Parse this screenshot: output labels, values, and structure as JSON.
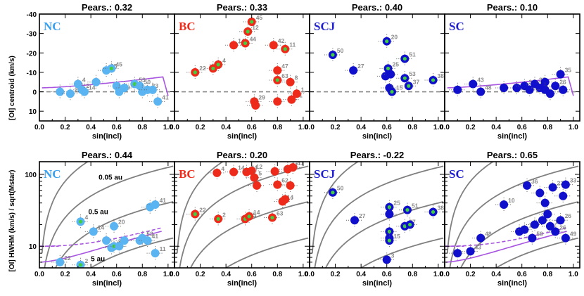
{
  "chart_data": [
    {
      "type": "scatter",
      "id": "nc-top",
      "row": "centroid",
      "title": "Pears.: 0.32",
      "tag": "NC",
      "tag_color": "#3aa0ee",
      "point_fill": "#5ab4f2",
      "xlabel": "sin(incl)",
      "ylabel": "[OI] centroid (km/s)",
      "xlim": [
        0,
        1.05
      ],
      "ylim": [
        -40,
        15
      ],
      "xticks": [
        "0.0",
        "0.2",
        "0.4",
        "0.6",
        "0.8",
        "1.0"
      ],
      "yticks": [
        -40,
        -30,
        -20,
        -10,
        0,
        10
      ],
      "curve": "purple-solid",
      "points": [
        {
          "x": 0.16,
          "y": 0,
          "id": ""
        },
        {
          "x": 0.24,
          "y": 1,
          "id": "22"
        },
        {
          "x": 0.3,
          "y": -4,
          "id": "4"
        },
        {
          "x": 0.33,
          "y": -1,
          "id": "2"
        },
        {
          "x": 0.35,
          "y": 0,
          "id": "14"
        },
        {
          "x": 0.44,
          "y": -5,
          "id": ""
        },
        {
          "x": 0.52,
          "y": -11,
          "id": "25"
        },
        {
          "x": 0.56,
          "y": -12,
          "id": "45",
          "green": true
        },
        {
          "x": 0.6,
          "y": -3,
          "id": ""
        },
        {
          "x": 0.62,
          "y": 0,
          "id": "19"
        },
        {
          "x": 0.66,
          "y": -2,
          "id": ""
        },
        {
          "x": 0.74,
          "y": -4,
          "id": "53",
          "green": true
        },
        {
          "x": 0.78,
          "y": -3,
          "id": "50"
        },
        {
          "x": 0.8,
          "y": 0,
          "id": ""
        },
        {
          "x": 0.84,
          "y": -1,
          "id": "23"
        },
        {
          "x": 0.88,
          "y": -1,
          "id": ""
        },
        {
          "x": 0.92,
          "y": 5,
          "id": "41"
        }
      ]
    },
    {
      "type": "scatter",
      "id": "bc-top",
      "row": "centroid",
      "title": "Pears.: 0.33",
      "tag": "BC",
      "tag_color": "#ee2a1a",
      "point_fill": "#ee2a1a",
      "xlabel": "sin(incl)",
      "ylabel": "",
      "xlim": [
        0,
        1.05
      ],
      "ylim": [
        -40,
        15
      ],
      "xticks": [
        "0.0",
        "0.2",
        "0.4",
        "0.6",
        "0.8",
        "1.0"
      ],
      "yticks": [],
      "curve": "",
      "points": [
        {
          "x": 0.16,
          "y": -10,
          "id": "22",
          "green": true
        },
        {
          "x": 0.3,
          "y": -12,
          "id": "2",
          "green": true
        },
        {
          "x": 0.34,
          "y": -14,
          "id": "4",
          "green": true
        },
        {
          "x": 0.46,
          "y": -24,
          "id": "14"
        },
        {
          "x": 0.55,
          "y": -25,
          "id": "44",
          "green": true
        },
        {
          "x": 0.57,
          "y": -31,
          "id": "12",
          "green": true
        },
        {
          "x": 0.6,
          "y": -36,
          "id": "45",
          "green": true
        },
        {
          "x": 0.62,
          "y": 5,
          "id": "29"
        },
        {
          "x": 0.63,
          "y": 7,
          "id": ""
        },
        {
          "x": 0.77,
          "y": -24,
          "id": "42"
        },
        {
          "x": 0.8,
          "y": -11,
          "id": "47"
        },
        {
          "x": 0.8,
          "y": -6,
          "id": "63",
          "green": true
        },
        {
          "x": 0.86,
          "y": -22,
          "id": "11",
          "green": true
        },
        {
          "x": 0.9,
          "y": -5,
          "id": "8"
        },
        {
          "x": 0.8,
          "y": 5,
          "id": ""
        },
        {
          "x": 0.91,
          "y": 4,
          "id": "41"
        },
        {
          "x": 0.95,
          "y": 1,
          "id": "1"
        }
      ]
    },
    {
      "type": "scatter",
      "id": "scj-top",
      "row": "centroid",
      "title": "Pears.: 0.40",
      "tag": "SCJ",
      "tag_color": "#2020d0",
      "point_fill": "#1010cc",
      "xlabel": "sin(incl)",
      "ylabel": "",
      "xlim": [
        0,
        1.05
      ],
      "ylim": [
        -40,
        15
      ],
      "xticks": [
        "0.0",
        "0.2",
        "0.4",
        "0.6",
        "0.8",
        "1.0"
      ],
      "yticks": [],
      "curve": "",
      "points": [
        {
          "x": 0.18,
          "y": -19,
          "id": "50",
          "green": true
        },
        {
          "x": 0.34,
          "y": -11,
          "id": "27"
        },
        {
          "x": 0.6,
          "y": -26,
          "id": "20",
          "green": true
        },
        {
          "x": 0.59,
          "y": -8,
          "id": ""
        },
        {
          "x": 0.61,
          "y": -12,
          "id": "25",
          "green": true
        },
        {
          "x": 0.63,
          "y": -9,
          "id": ""
        },
        {
          "x": 0.62,
          "y": -2,
          "id": ""
        },
        {
          "x": 0.64,
          "y": 0,
          "id": "15",
          "green": true
        },
        {
          "x": 0.74,
          "y": -17,
          "id": "51",
          "green": true
        },
        {
          "x": 0.74,
          "y": -7,
          "id": "53",
          "green": true
        },
        {
          "x": 0.77,
          "y": -3,
          "id": "37",
          "green": true
        },
        {
          "x": 0.96,
          "y": -6,
          "id": "38",
          "green": true
        }
      ]
    },
    {
      "type": "scatter",
      "id": "sc-top",
      "row": "centroid",
      "title": "Pears.: 0.10",
      "tag": "SC",
      "tag_color": "#2020d0",
      "point_fill": "#1010cc",
      "xlabel": "sin(incl)",
      "ylabel": "",
      "xlim": [
        0,
        1.05
      ],
      "ylim": [
        -40,
        15
      ],
      "xticks": [
        "0.0",
        "0.2",
        "0.4",
        "0.6",
        "0.8",
        "1.0"
      ],
      "yticks": [],
      "curve": "purple-solid",
      "points": [
        {
          "x": 0.1,
          "y": -1,
          "id": ""
        },
        {
          "x": 0.22,
          "y": -4,
          "id": "43"
        },
        {
          "x": 0.28,
          "y": 0,
          "id": "48"
        },
        {
          "x": 0.46,
          "y": -2,
          "id": ""
        },
        {
          "x": 0.56,
          "y": -2,
          "id": ""
        },
        {
          "x": 0.62,
          "y": -3,
          "id": "36"
        },
        {
          "x": 0.66,
          "y": -1,
          "id": ""
        },
        {
          "x": 0.7,
          "y": -4,
          "id": "35"
        },
        {
          "x": 0.74,
          "y": -2,
          "id": ""
        },
        {
          "x": 0.78,
          "y": -5,
          "id": ""
        },
        {
          "x": 0.78,
          "y": -1,
          "id": ""
        },
        {
          "x": 0.82,
          "y": 1,
          "id": ""
        },
        {
          "x": 0.86,
          "y": -3,
          "id": "26"
        },
        {
          "x": 0.9,
          "y": -9,
          "id": "35"
        },
        {
          "x": 0.92,
          "y": -1,
          "id": ""
        }
      ]
    },
    {
      "type": "scatter",
      "id": "nc-bot",
      "row": "hwhm",
      "title": "Pears.: 0.44",
      "tag": "NC",
      "tag_color": "#3aa0ee",
      "point_fill": "#5ab4f2",
      "xlabel": "sin(incl)",
      "ylabel": "[OI] HWHM (km/s) / sqrt(Mstar)",
      "xlim": [
        0,
        1.05
      ],
      "ylim": [
        5,
        150
      ],
      "log": true,
      "xticks": [
        "0.0",
        "0.2",
        "0.4",
        "0.6",
        "0.8",
        "1.0"
      ],
      "yticks": [
        10,
        100
      ],
      "curve": "purple-both",
      "annots": [
        "0.05 au",
        "0.5 au",
        "5 au"
      ],
      "points": [
        {
          "x": 0.16,
          "y": 6,
          "id": "22"
        },
        {
          "x": 0.32,
          "y": 22,
          "id": "4",
          "green": true
        },
        {
          "x": 0.32,
          "y": 5.5,
          "id": "2",
          "green": true
        },
        {
          "x": 0.42,
          "y": 16,
          "id": "14"
        },
        {
          "x": 0.52,
          "y": 12,
          "id": ""
        },
        {
          "x": 0.56,
          "y": 9.5,
          "id": "47"
        },
        {
          "x": 0.58,
          "y": 19,
          "id": "20"
        },
        {
          "x": 0.58,
          "y": 10,
          "id": "45",
          "green": true
        },
        {
          "x": 0.62,
          "y": 10,
          "id": ""
        },
        {
          "x": 0.66,
          "y": 12,
          "id": ""
        },
        {
          "x": 0.78,
          "y": 12,
          "id": ""
        },
        {
          "x": 0.8,
          "y": 13,
          "id": "53"
        },
        {
          "x": 0.84,
          "y": 12,
          "id": "41"
        },
        {
          "x": 0.86,
          "y": 35,
          "id": ""
        },
        {
          "x": 0.9,
          "y": 38,
          "id": "41"
        },
        {
          "x": 0.9,
          "y": 8,
          "id": "11"
        }
      ]
    },
    {
      "type": "scatter",
      "id": "bc-bot",
      "row": "hwhm",
      "title": "Pears.: 0.20",
      "tag": "BC",
      "tag_color": "#ee2a1a",
      "point_fill": "#ee2a1a",
      "xlabel": "sin(incl)",
      "ylabel": "",
      "xlim": [
        0,
        1.05
      ],
      "ylim": [
        5,
        150
      ],
      "log": true,
      "xticks": [
        "0.0",
        "0.2",
        "0.4",
        "0.6",
        "0.8",
        "1.0"
      ],
      "yticks": [],
      "curve": "",
      "points": [
        {
          "x": 0.16,
          "y": 28,
          "id": "22",
          "green": true
        },
        {
          "x": 0.33,
          "y": 105,
          "id": "4"
        },
        {
          "x": 0.34,
          "y": 24,
          "id": "2",
          "green": true
        },
        {
          "x": 0.46,
          "y": 108,
          "id": "14"
        },
        {
          "x": 0.55,
          "y": 24,
          "id": "45",
          "green": true
        },
        {
          "x": 0.56,
          "y": 108,
          "id": "44"
        },
        {
          "x": 0.58,
          "y": 26,
          "id": "14",
          "green": true
        },
        {
          "x": 0.6,
          "y": 112,
          "id": "12"
        },
        {
          "x": 0.62,
          "y": 90,
          "id": "5"
        },
        {
          "x": 0.64,
          "y": 70,
          "id": ""
        },
        {
          "x": 0.76,
          "y": 25,
          "id": "63",
          "green": true
        },
        {
          "x": 0.78,
          "y": 110,
          "id": ""
        },
        {
          "x": 0.8,
          "y": 72,
          "id": "62"
        },
        {
          "x": 0.84,
          "y": 42,
          "id": "14"
        },
        {
          "x": 0.86,
          "y": 45,
          "id": ""
        },
        {
          "x": 0.88,
          "y": 118,
          "id": "11"
        },
        {
          "x": 0.9,
          "y": 70,
          "id": ""
        },
        {
          "x": 0.92,
          "y": 125,
          "id": "41"
        }
      ]
    },
    {
      "type": "scatter",
      "id": "scj-bot",
      "row": "hwhm",
      "title": "Pears.: -0.22",
      "tag": "SCJ",
      "tag_color": "#2020d0",
      "point_fill": "#1010cc",
      "xlabel": "sin(incl)",
      "ylabel": "",
      "xlim": [
        0,
        1.05
      ],
      "ylim": [
        5,
        150
      ],
      "log": true,
      "xticks": [
        "0.0",
        "0.2",
        "0.4",
        "0.6",
        "0.8",
        "1.0"
      ],
      "yticks": [],
      "curve": "",
      "points": [
        {
          "x": 0.18,
          "y": 56,
          "id": "50",
          "green": true
        },
        {
          "x": 0.35,
          "y": 23,
          "id": "27"
        },
        {
          "x": 0.6,
          "y": 6.5,
          "id": "3"
        },
        {
          "x": 0.62,
          "y": 35,
          "id": "25",
          "green": true
        },
        {
          "x": 0.62,
          "y": 28,
          "id": ""
        },
        {
          "x": 0.62,
          "y": 16,
          "id": "",
          "green": true
        },
        {
          "x": 0.62,
          "y": 13,
          "id": "",
          "green": true
        },
        {
          "x": 0.62,
          "y": 12,
          "id": "15",
          "green": true
        },
        {
          "x": 0.74,
          "y": 19,
          "id": "37",
          "green": true
        },
        {
          "x": 0.76,
          "y": 32,
          "id": "51",
          "green": true
        },
        {
          "x": 0.78,
          "y": 20,
          "id": "",
          "green": true
        },
        {
          "x": 0.96,
          "y": 30,
          "id": "38",
          "green": true
        }
      ]
    },
    {
      "type": "scatter",
      "id": "sc-bot",
      "row": "hwhm",
      "title": "Pears.: 0.65",
      "tag": "SC",
      "tag_color": "#2020d0",
      "point_fill": "#1010cc",
      "xlabel": "sin(incl)",
      "ylabel": "",
      "xlim": [
        0,
        1.05
      ],
      "ylim": [
        5,
        150
      ],
      "log": true,
      "xticks": [
        "0.0",
        "0.2",
        "0.4",
        "0.6",
        "0.8",
        "1.0"
      ],
      "yticks": [],
      "curve": "purple-both",
      "points": [
        {
          "x": 0.1,
          "y": 8,
          "id": ""
        },
        {
          "x": 0.2,
          "y": 8.5,
          "id": "43"
        },
        {
          "x": 0.28,
          "y": 13,
          "id": "48"
        },
        {
          "x": 0.46,
          "y": 38,
          "id": "10"
        },
        {
          "x": 0.58,
          "y": 16,
          "id": ""
        },
        {
          "x": 0.62,
          "y": 17,
          "id": "10"
        },
        {
          "x": 0.64,
          "y": 70,
          "id": "36"
        },
        {
          "x": 0.68,
          "y": 13,
          "id": "58"
        },
        {
          "x": 0.7,
          "y": 20,
          "id": "34"
        },
        {
          "x": 0.74,
          "y": 55,
          "id": ""
        },
        {
          "x": 0.76,
          "y": 23,
          "id": ""
        },
        {
          "x": 0.78,
          "y": 40,
          "id": ""
        },
        {
          "x": 0.8,
          "y": 28,
          "id": ""
        },
        {
          "x": 0.82,
          "y": 19,
          "id": "19"
        },
        {
          "x": 0.84,
          "y": 66,
          "id": "23"
        },
        {
          "x": 0.86,
          "y": 16,
          "id": "26"
        },
        {
          "x": 0.9,
          "y": 23,
          "id": "26"
        },
        {
          "x": 0.92,
          "y": 50,
          "id": ""
        },
        {
          "x": 0.94,
          "y": 72,
          "id": "33"
        },
        {
          "x": 0.94,
          "y": 13,
          "id": "49"
        }
      ]
    }
  ]
}
